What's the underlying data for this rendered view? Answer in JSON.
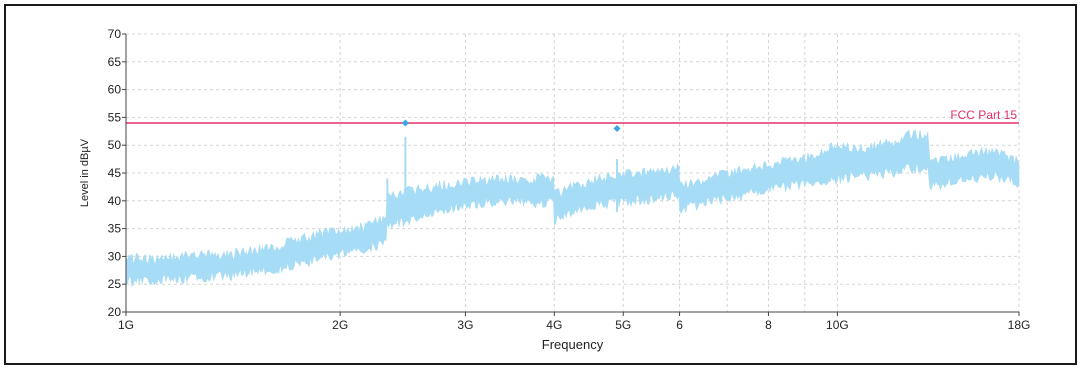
{
  "chart_data": {
    "type": "line",
    "title": "",
    "xlabel": "Frequency",
    "ylabel": "Level in dBµV",
    "x_scale": "log",
    "xlim": [
      1,
      18
    ],
    "ylim": [
      20,
      70
    ],
    "x_ticks": [
      {
        "value": 1,
        "label": "1G"
      },
      {
        "value": 2,
        "label": "2G"
      },
      {
        "value": 3,
        "label": "3G"
      },
      {
        "value": 4,
        "label": "4G"
      },
      {
        "value": 5,
        "label": "5G"
      },
      {
        "value": 6,
        "label": "6"
      },
      {
        "value": 8,
        "label": "8"
      },
      {
        "value": 10,
        "label": "10G"
      },
      {
        "value": 18,
        "label": "18G"
      }
    ],
    "x_minor_grid": [
      7,
      9
    ],
    "y_ticks": [
      20,
      25,
      30,
      35,
      40,
      45,
      50,
      55,
      60,
      65,
      70
    ],
    "grid": true,
    "series": [
      {
        "name": "",
        "color": "#a6dcf5",
        "style": "noise-band",
        "x": [
          1.0,
          1.2,
          1.4,
          1.6,
          1.8,
          2.0,
          2.2,
          2.32,
          2.33,
          2.6,
          3.0,
          3.5,
          3.99,
          4.0,
          4.3,
          4.7,
          5.2,
          5.99,
          6.0,
          6.5,
          7.0,
          7.5,
          8.0,
          8.5,
          9.0,
          9.5,
          10.0,
          11.0,
          12.0,
          12.8,
          13.4,
          13.5,
          14.5,
          15.5,
          16.5,
          17.5,
          18.0
        ],
        "lower": [
          25.5,
          26,
          26.5,
          27.5,
          29,
          30.5,
          31.5,
          32.5,
          35.5,
          37,
          39.5,
          40,
          39.5,
          36.5,
          38.5,
          39.5,
          40,
          41,
          38.5,
          39.5,
          40.5,
          41,
          42,
          42.5,
          43,
          43.5,
          44,
          44.5,
          45,
          46,
          46,
          42.5,
          43.5,
          44,
          44.5,
          44,
          43
        ],
        "upper": [
          29.5,
          30,
          30.5,
          31.5,
          33.5,
          34.5,
          35.5,
          37,
          41,
          42,
          43.5,
          44,
          44,
          41,
          43,
          44,
          45,
          46,
          43,
          43.5,
          45,
          45.5,
          46.5,
          47,
          47.5,
          48.5,
          50,
          49.5,
          50.5,
          52,
          51.5,
          47.5,
          48,
          48.5,
          49,
          48,
          46.5
        ]
      }
    ],
    "spikes": [
      {
        "x": 2.33,
        "y": 44
      },
      {
        "x": 2.47,
        "y": 51.5
      },
      {
        "x": 4.9,
        "y": 47.5
      }
    ],
    "limit_lines": [
      {
        "name": "FCC Part 15",
        "y": 54,
        "color": "#e0306a"
      }
    ],
    "markers": [
      {
        "x": 2.47,
        "y": 54,
        "color": "#3aa6e8"
      },
      {
        "x": 4.9,
        "y": 53,
        "color": "#3aa6e8"
      }
    ]
  }
}
